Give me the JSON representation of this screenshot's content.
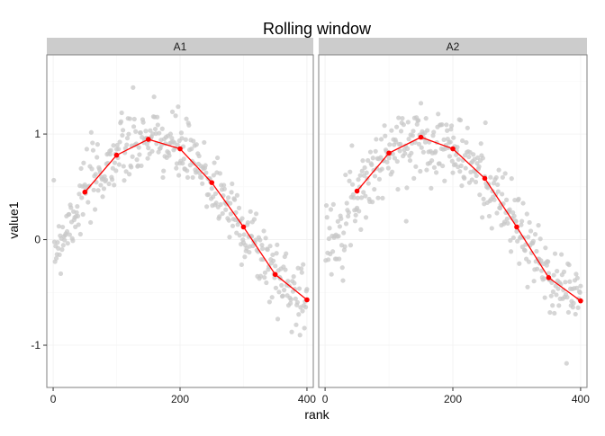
{
  "chart_data": {
    "type": "scatter",
    "title": "Rolling window",
    "xlabel": "rank",
    "ylabel": "value1",
    "xlim": [
      -10,
      410
    ],
    "ylim": [
      -1.4,
      1.75
    ],
    "x_ticks": [
      0,
      200,
      400
    ],
    "x_tick_labels": [
      "0",
      "200",
      "400"
    ],
    "y_ticks": [
      -1,
      0,
      1
    ],
    "y_tick_labels": [
      "-1",
      "0",
      "1"
    ],
    "grid": true,
    "colors": {
      "points": "#c8c8c8",
      "line": "#ff0000",
      "strip_bg": "#cccccc",
      "panel_border": "#7f7f7f",
      "grid": "#f0f0f0"
    },
    "panels": [
      {
        "label": "A1",
        "rolling_x": [
          50,
          100,
          150,
          200,
          250,
          300,
          350,
          400
        ],
        "rolling_y": [
          0.45,
          0.8,
          0.95,
          0.86,
          0.54,
          0.12,
          -0.33,
          -0.57
        ]
      },
      {
        "label": "A2",
        "rolling_x": [
          50,
          100,
          150,
          200,
          250,
          300,
          350,
          400
        ],
        "rolling_y": [
          0.46,
          0.82,
          0.97,
          0.86,
          0.58,
          0.12,
          -0.36,
          -0.58
        ]
      }
    ]
  }
}
